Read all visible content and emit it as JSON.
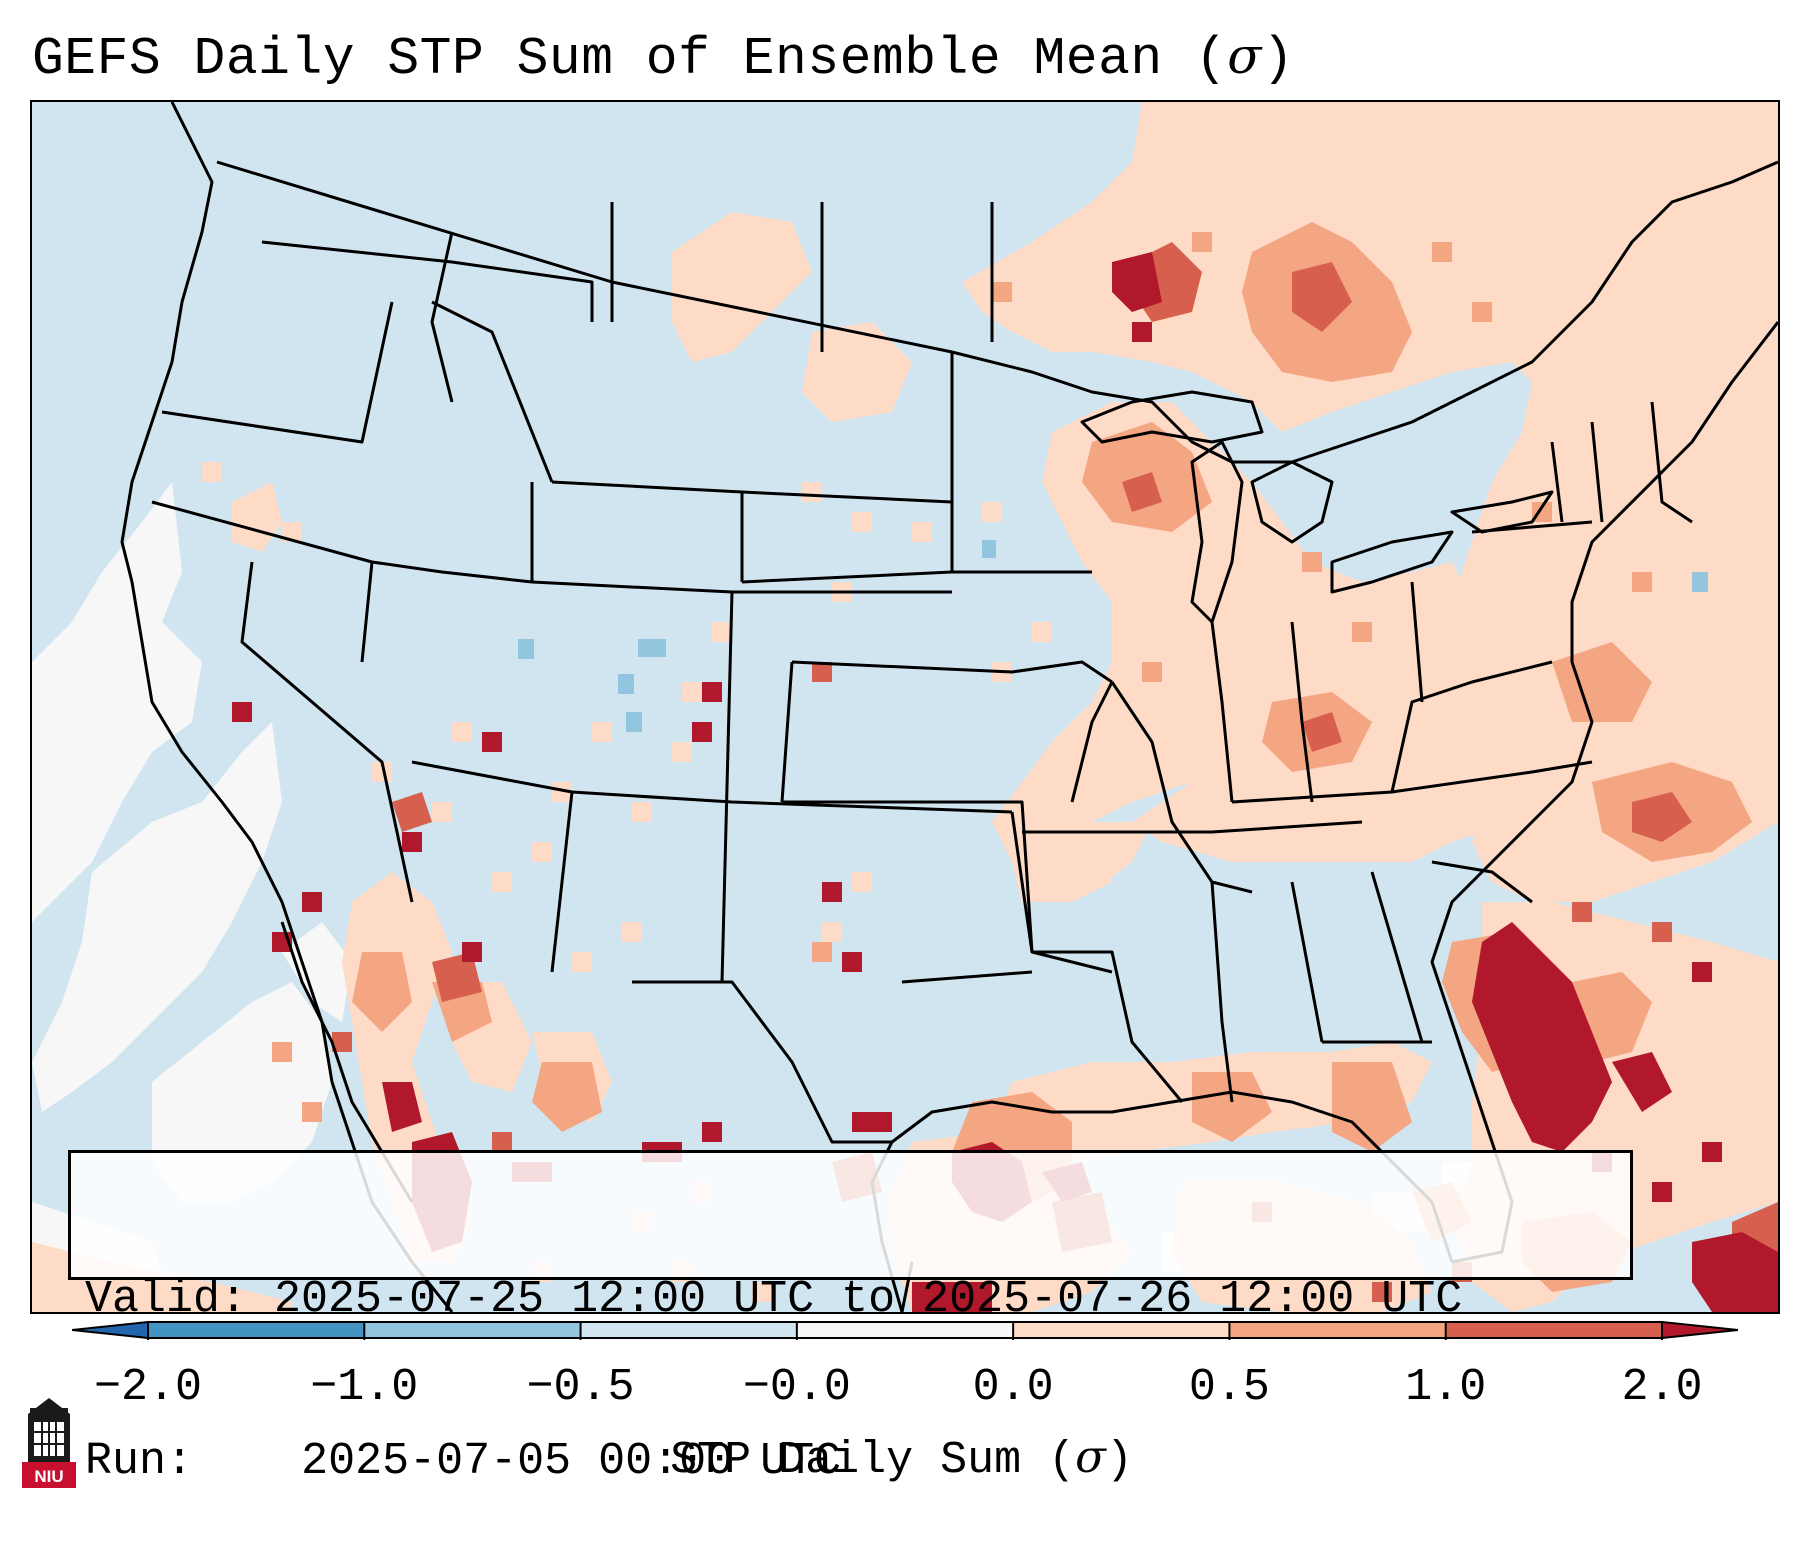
{
  "title": {
    "text": "GEFS Daily STP Sum of Ensemble Mean (",
    "symbol": "σ",
    "close": ")"
  },
  "info": {
    "valid_label": "Valid:",
    "valid_value": "2025-07-25 12:00 UTC to 2025-07-26 12:00 UTC",
    "run_label": "Run:",
    "run_value": "2025-07-05 00:00 UTC"
  },
  "colorbar": {
    "ticks": [
      "−2.0",
      "−1.0",
      "−0.5",
      "−0.0",
      "0.0",
      "0.5",
      "1.0",
      "2.0"
    ],
    "colors": [
      "#2166ac",
      "#4393c3",
      "#92c5de",
      "#d1e5f0",
      "#f7f7f7",
      "#fddbc7",
      "#f4a582",
      "#d6604d",
      "#b2182b"
    ],
    "label_text": "STP Daily Sum (",
    "label_symbol": "σ",
    "label_close": ")"
  },
  "map": {
    "background_color": "#d1e5f0",
    "land_outline_color": "#000000",
    "region": "Continental United States",
    "high_value_color": "#b2182b",
    "moderate_value_color": "#d6604d",
    "low_value_color": "#fddbc7",
    "neutral_color": "#f7f7f7"
  },
  "logo": {
    "text": "NIU",
    "icon": "niu-university-tower-icon"
  }
}
